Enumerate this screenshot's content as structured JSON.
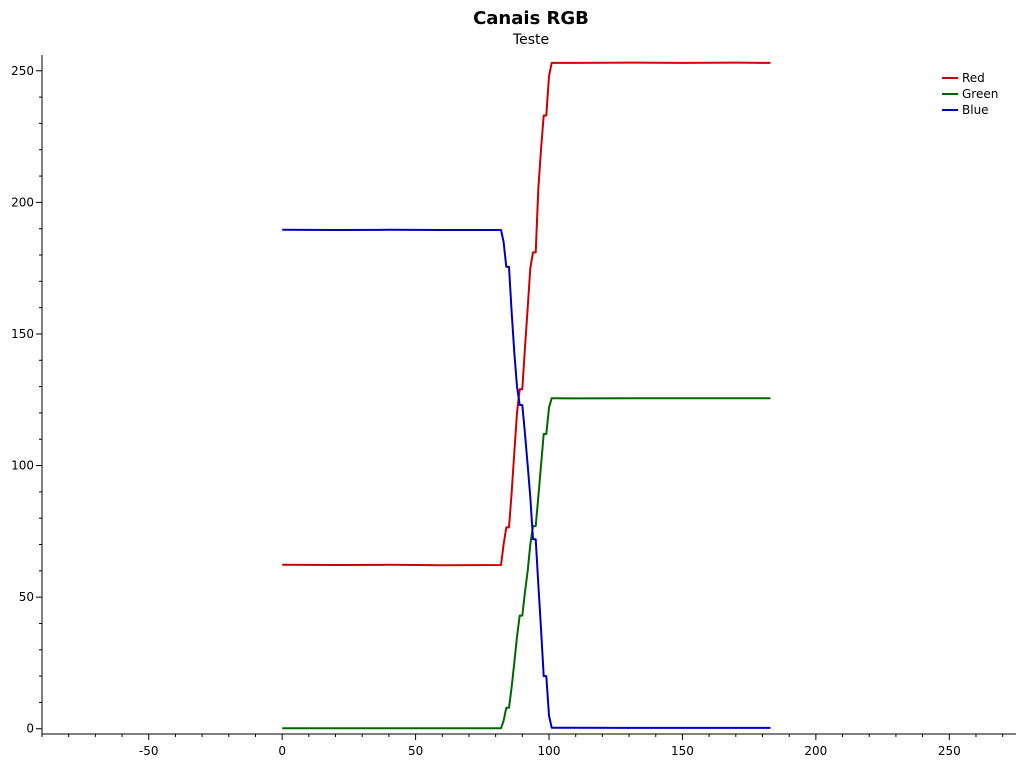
{
  "chart_data": {
    "type": "line",
    "title": "Canais RGB",
    "subtitle": "Teste",
    "xlabel": "",
    "ylabel": "",
    "xlim": [
      -90,
      275
    ],
    "ylim": [
      -2,
      256
    ],
    "xticks": [
      -50,
      0,
      50,
      100,
      150,
      200,
      250
    ],
    "yticks": [
      0,
      50,
      100,
      150,
      200,
      250
    ],
    "grid": false,
    "legend_position": "top-right",
    "series": [
      {
        "name": "Red",
        "color": "#cc0000",
        "x": [
          0,
          20,
          40,
          60,
          82,
          83,
          84,
          85,
          86,
          87,
          88,
          89,
          90,
          91,
          92,
          93,
          94,
          95,
          96,
          97,
          98,
          99,
          100,
          101,
          102,
          110,
          130,
          150,
          170,
          183
        ],
        "y": [
          62.3,
          62.2,
          62.3,
          62.1,
          62.2,
          70,
          76.5,
          76.5,
          90,
          105,
          120,
          129,
          129,
          145,
          160,
          175,
          181,
          181,
          205,
          220,
          233,
          233,
          248,
          253,
          253,
          253,
          253.1,
          253,
          253.1,
          253
        ]
      },
      {
        "name": "Green",
        "color": "#006600",
        "x": [
          0,
          20,
          40,
          60,
          82,
          83,
          84,
          85,
          86,
          87,
          88,
          89,
          90,
          91,
          92,
          93,
          94,
          95,
          96,
          97,
          98,
          99,
          100,
          101,
          102,
          110,
          130,
          150,
          170,
          183
        ],
        "y": [
          0.2,
          0.2,
          0.2,
          0.2,
          0.2,
          3,
          8,
          8,
          16,
          25,
          35,
          43,
          43,
          52,
          60,
          70,
          77,
          77,
          88,
          100,
          112,
          112,
          122,
          125.6,
          125.6,
          125.5,
          125.6,
          125.6,
          125.6,
          125.6
        ]
      },
      {
        "name": "Blue",
        "color": "#0000bb",
        "x": [
          0,
          20,
          40,
          60,
          82,
          83,
          84,
          85,
          86,
          87,
          88,
          89,
          90,
          91,
          92,
          93,
          94,
          95,
          96,
          97,
          98,
          99,
          100,
          101,
          102,
          110,
          130,
          150,
          170,
          183
        ],
        "y": [
          189.6,
          189.5,
          189.6,
          189.5,
          189.5,
          185,
          175.5,
          175.5,
          158,
          143,
          130,
          123,
          123,
          112,
          100,
          88,
          72,
          72,
          55,
          38,
          20,
          20,
          5,
          0.4,
          0.4,
          0.4,
          0.3,
          0.3,
          0.3,
          0.3
        ]
      }
    ]
  }
}
